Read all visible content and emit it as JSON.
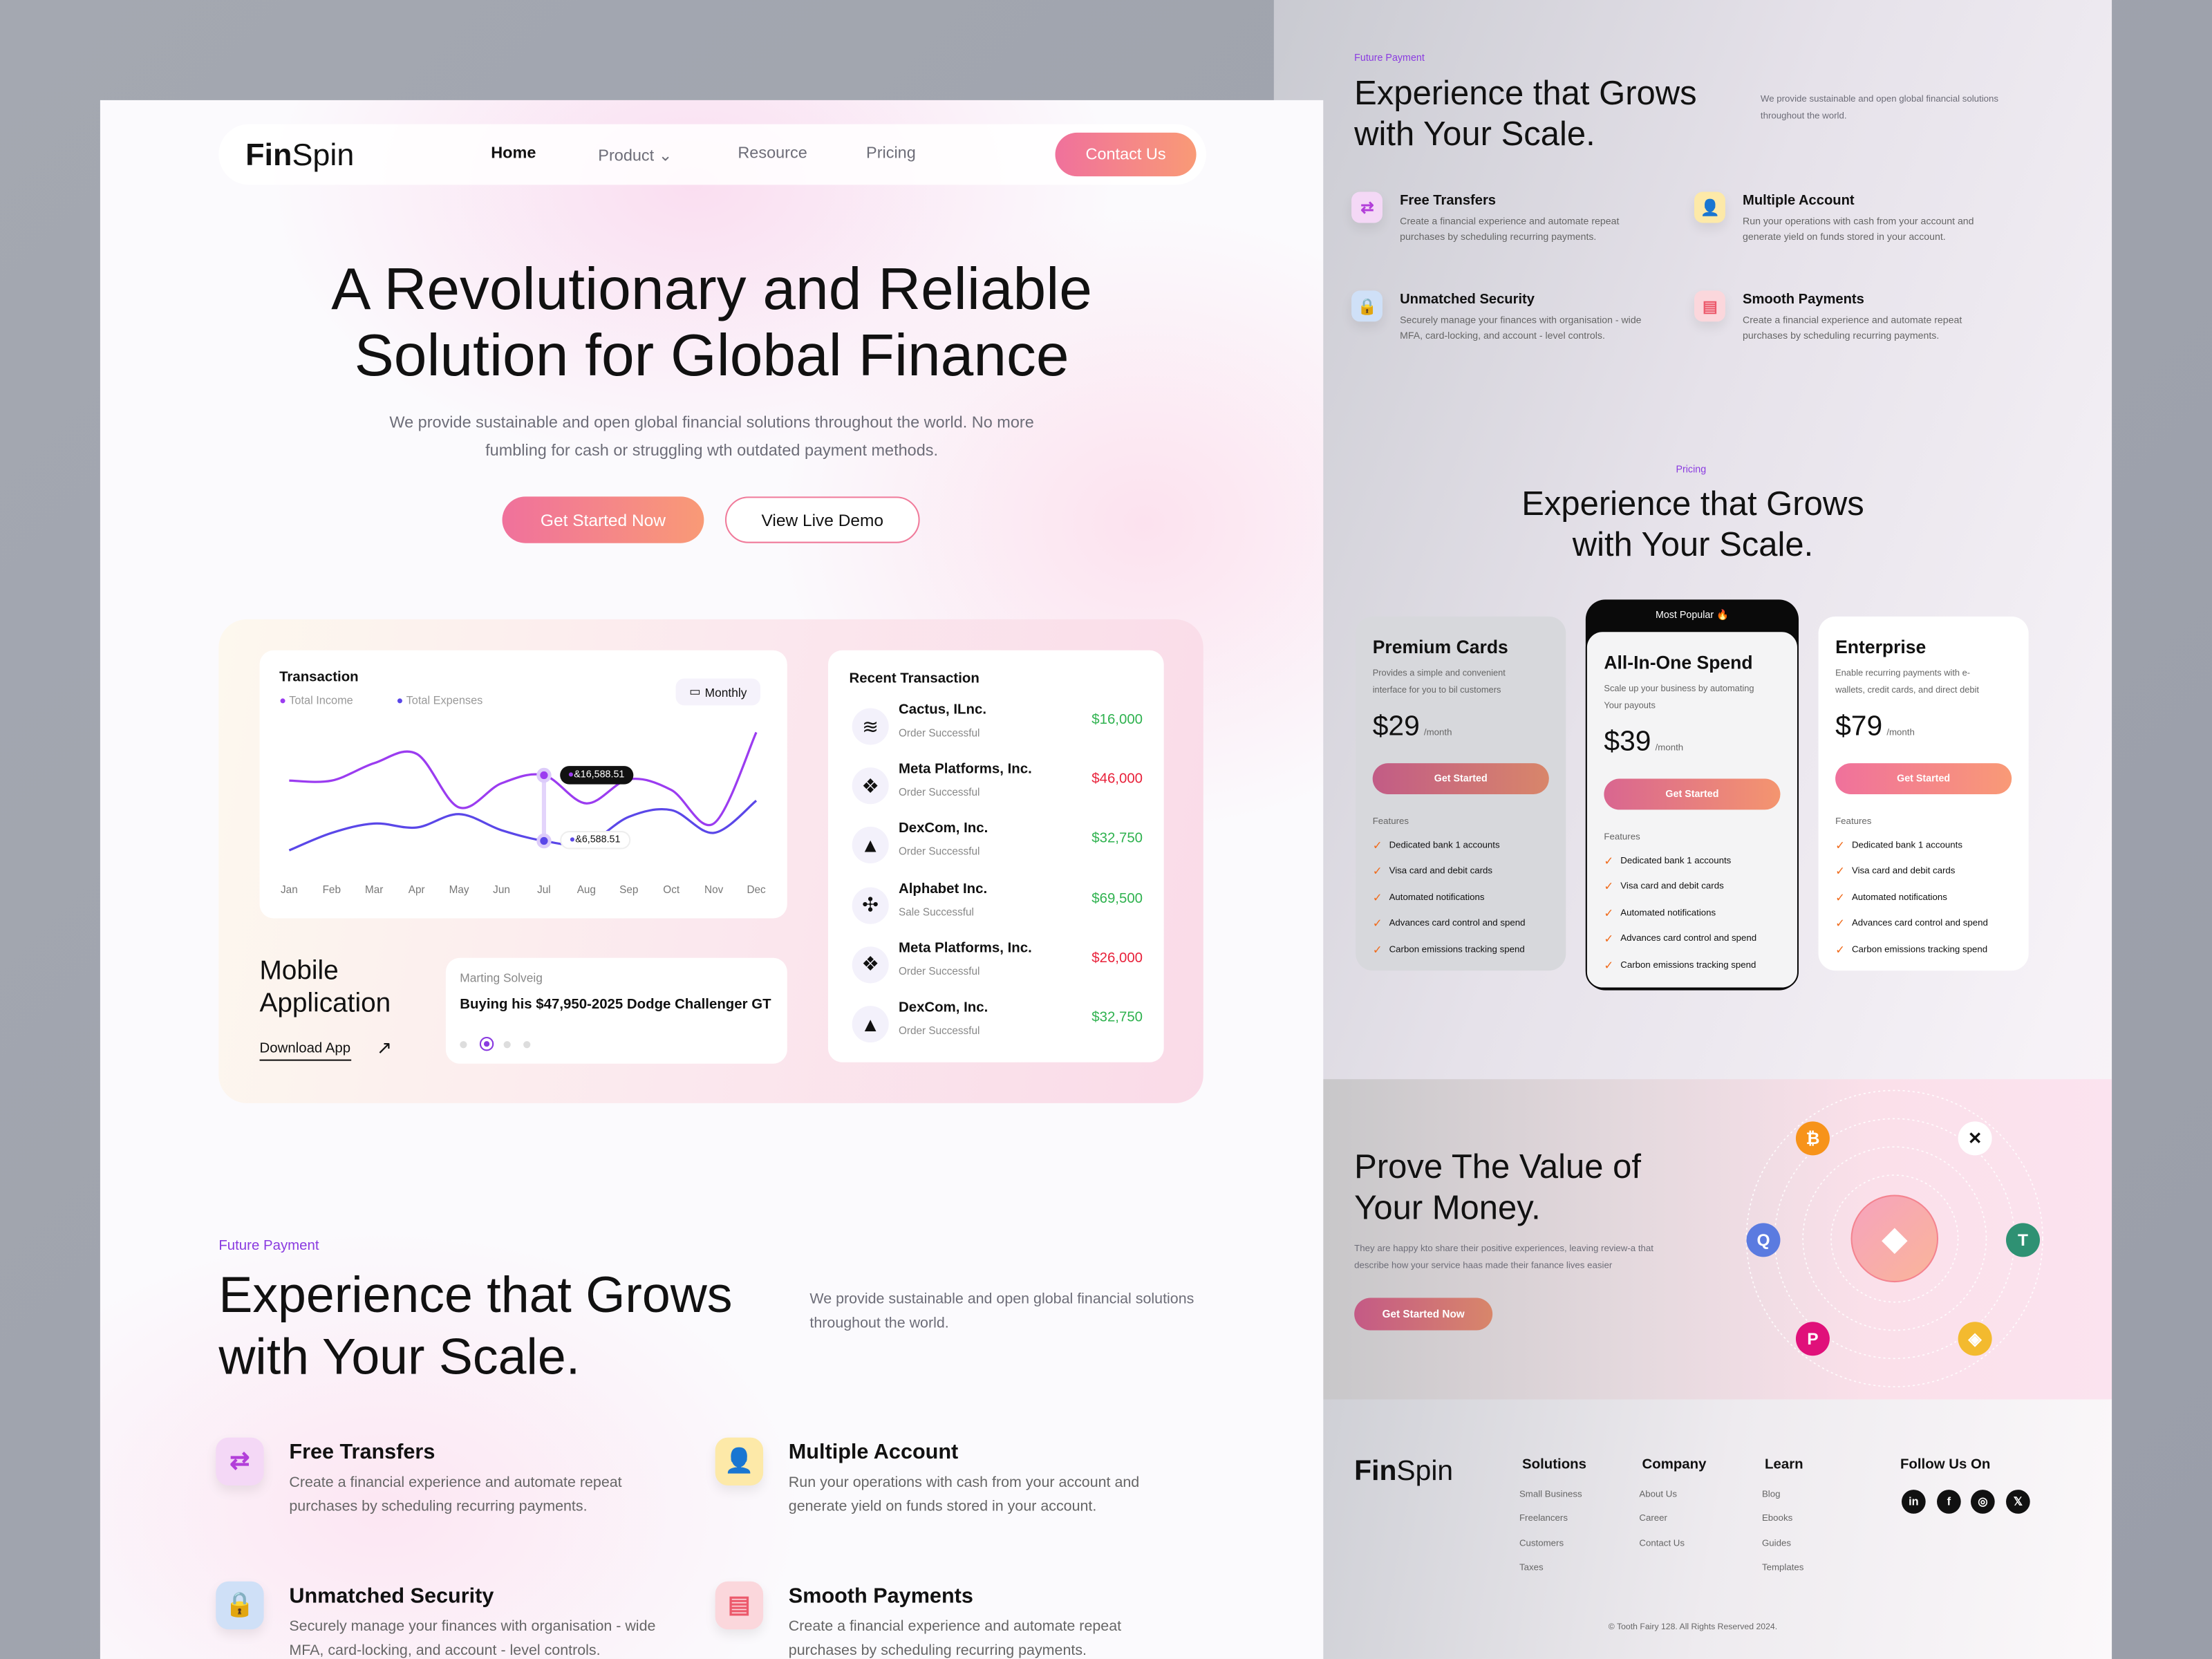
{
  "brand": {
    "logo": "FinSpin"
  },
  "nav": {
    "items": [
      "Home",
      "Product",
      "Resource",
      "Pricing"
    ],
    "contact": "Contact Us"
  },
  "hero": {
    "title_line1": "A Revolutionary and Reliable",
    "title_line2": "Solution for Global Finance",
    "subtitle_line1": "We provide sustainable and open global financial solutions throughout the world.  No more",
    "subtitle_line2": "fumbling for cash or struggling wth outdated payment methods.",
    "primary": "Get Started Now",
    "secondary": "View Live Demo"
  },
  "dashboard": {
    "transaction": {
      "title": "Transaction",
      "legend_income": "Total Income",
      "legend_expenses": "Total Expenses",
      "period": "Monthly",
      "chart_data": {
        "type": "line",
        "categories": [
          "Jan",
          "Feb",
          "Mar",
          "Apr",
          "May",
          "Jun",
          "Jul",
          "Aug",
          "Sep",
          "Oct",
          "Nov",
          "Dec"
        ],
        "series": [
          {
            "name": "Total Income",
            "color": "#9b3cf0",
            "values": [
              87,
              87,
              100,
              107,
              67,
              85,
              91,
              70,
              88,
              80,
              55,
              123
            ]
          },
          {
            "name": "Total Expenses",
            "color": "#5a47e8",
            "values": [
              35,
              48,
              55,
              52,
              62,
              50,
              42,
              40,
              60,
              65,
              48,
              72
            ]
          }
        ],
        "highlight": {
          "category": "Jul",
          "income_label": "&16,588.51",
          "expenses_label": "&6,588.51"
        },
        "grid": false
      }
    },
    "recent": {
      "title": "Recent Transaction",
      "items": [
        {
          "name": "Cactus, ILnc.",
          "status": "Order Successful",
          "amount": "$16,000",
          "color": "#2fb24f",
          "logo": "spotify-icon"
        },
        {
          "name": "Meta Platforms, Inc.",
          "status": "Order Successful",
          "amount": "$46,000",
          "color": "#e8213a",
          "logo": "dropbox-icon"
        },
        {
          "name": "DexCom, Inc.",
          "status": "Order Successful",
          "amount": "$32,750",
          "color": "#2fb24f",
          "logo": "drive-icon"
        },
        {
          "name": "Alphabet Inc.",
          "status": "Sale Successful",
          "amount": "$69,500",
          "color": "#2fb24f",
          "logo": "pinwheel-icon"
        },
        {
          "name": "Meta Platforms, Inc.",
          "status": "Order Successful",
          "amount": "$26,000",
          "color": "#e8213a",
          "logo": "dropbox-icon"
        },
        {
          "name": "DexCom, Inc.",
          "status": "Order Successful",
          "amount": "$32,750",
          "color": "#2fb24f",
          "logo": "drive-icon"
        }
      ]
    },
    "mobile": {
      "title_line1": "Mobile",
      "title_line2": "Application",
      "download": "Download App"
    },
    "testimonial": {
      "author": "Marting Solveig",
      "text": "Buying his $47,950-2025 Dodge Challenger GT",
      "slide_count": 4,
      "active_slide": 2
    }
  },
  "future": {
    "label": "Future Payment",
    "title_line1": "Experience that Grows",
    "title_line2": "with Your Scale.",
    "desc_line1": "We provide sustainable and open global financial solutions",
    "desc_line2": "throughout the world.",
    "features": [
      {
        "title": "Free Transfers",
        "d1": "Create a financial experience and automate repeat",
        "d2": "purchases by scheduling recurring payments.",
        "icon": "transfer-icon"
      },
      {
        "title": "Multiple Account",
        "d1": "Run your operations with cash from your account and",
        "d2": "generate yield on funds stored in your account.",
        "icon": "user-add-icon"
      },
      {
        "title": "Unmatched Security",
        "d1": "Securely manage  your finances with organisation - wide",
        "d2": "MFA, card-locking, and account - level controls.",
        "icon": "lock-icon"
      },
      {
        "title": "Smooth Payments",
        "d1": "Create a financial experience and automate repeat",
        "d2": "purchases by scheduling recurring payments.",
        "icon": "payment-hand-icon"
      }
    ]
  },
  "pricing": {
    "label": "Pricing",
    "title_line1": "Experience that Grows",
    "title_line2": "with Your Scale.",
    "badge": "Most Popular",
    "features_label": "Features",
    "per": "/month",
    "cta": "Get Started",
    "feature_items": [
      "Dedicated bank 1 accounts",
      "Visa card and debit cards",
      "Automated notifications",
      "Advances card control and spend",
      "Carbon emissions tracking spend"
    ],
    "plans": [
      {
        "name": "Premium Cards",
        "d1": "Provides a simple and convenient",
        "d2": "interface for you to  bil customers",
        "price": "$29"
      },
      {
        "name": "All-In-One Spend",
        "d1": "Scale up your business by automating",
        "d2": "Your payouts",
        "price": "$39"
      },
      {
        "name": "Enterprise",
        "d1": "Enable recurring payments with e-",
        "d2": "wallets, credit cards, and direct debit",
        "price": "$79"
      }
    ]
  },
  "prove": {
    "title_line1": "Prove The Value of",
    "title_line2": "Your Money.",
    "d1": "They are happy kto share their positive experiences, leaving review-a that",
    "d2": "describe how your service haas  made their fanance lives easier",
    "cta": "Get Started Now"
  },
  "footer": {
    "columns": [
      {
        "title": "Solutions",
        "links": [
          "Small Business",
          "Freelancers",
          "Customers",
          "Taxes"
        ]
      },
      {
        "title": "Company",
        "links": [
          "About Us",
          "Career",
          "Contact Us"
        ]
      },
      {
        "title": "Learn",
        "links": [
          "Blog",
          "Ebooks",
          "Guides",
          "Templates"
        ]
      }
    ],
    "follow": "Follow Us On",
    "social": [
      "in",
      "f",
      "◎",
      "𝕏"
    ],
    "copyright": "© Tooth Fairy 128. All Rights Reserved 2024."
  }
}
